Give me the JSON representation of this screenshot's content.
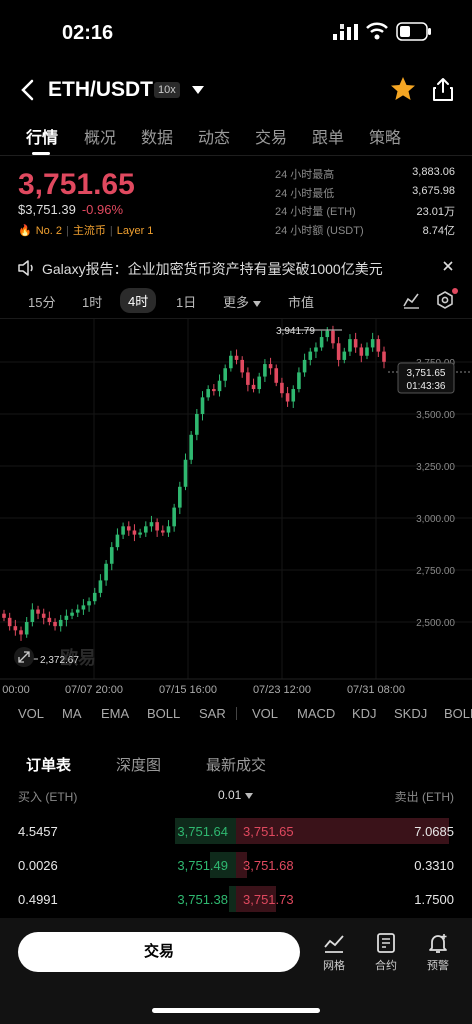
{
  "status_bar": {
    "time": "02:16"
  },
  "header": {
    "pair": "ETH/USDT",
    "leverage": "10x"
  },
  "tabs": [
    "行情",
    "概况",
    "数据",
    "动态",
    "交易",
    "跟单",
    "策略"
  ],
  "price": {
    "last": "3,751.65",
    "usd": "$3,751.39",
    "change": "-0.96%",
    "tags": [
      "No. 2",
      "主流币",
      "Layer 1"
    ]
  },
  "stats": [
    {
      "label": "24 小时最高",
      "value": "3,883.06"
    },
    {
      "label": "24 小时最低",
      "value": "3,675.98"
    },
    {
      "label": "24 小时量 (ETH)",
      "value": "23.01万"
    },
    {
      "label": "24 小时额 (USDT)",
      "value": "8.74亿"
    }
  ],
  "notice": "Galaxy报告：企业加密货币资产持有量突破1000亿美元",
  "intervals": [
    "15分",
    "1时",
    "4时",
    "1日",
    "更多",
    "市值"
  ],
  "active_interval": "4时",
  "chart_data": {
    "type": "candlestick",
    "y_ticks": [
      "3,750.00",
      "3,500.00",
      "3,250.00",
      "3,000.00",
      "2,750.00",
      "2,500.00"
    ],
    "y_tick_values": [
      3750,
      3500,
      3250,
      3000,
      2750,
      2500
    ],
    "x_ticks": [
      "00:00",
      "07/07 20:00",
      "07/15 16:00",
      "07/23 12:00",
      "07/31 08:00"
    ],
    "high_label": "3,941.79",
    "low_label": "2,372.67",
    "last_price": "3,751.65",
    "countdown": "01:43:36",
    "watermark": "欧易",
    "closes": [
      2520,
      2480,
      2460,
      2440,
      2500,
      2560,
      2540,
      2520,
      2500,
      2480,
      2510,
      2530,
      2545,
      2560,
      2580,
      2600,
      2640,
      2700,
      2780,
      2860,
      2920,
      2960,
      2940,
      2920,
      2930,
      2960,
      2980,
      2940,
      2930,
      2960,
      3050,
      3150,
      3280,
      3400,
      3500,
      3580,
      3620,
      3610,
      3660,
      3720,
      3780,
      3760,
      3700,
      3640,
      3620,
      3680,
      3740,
      3720,
      3650,
      3600,
      3560,
      3620,
      3700,
      3760,
      3800,
      3820,
      3870,
      3900,
      3840,
      3760,
      3800,
      3860,
      3820,
      3780,
      3820,
      3860,
      3800,
      3751
    ]
  },
  "indicators_main": [
    "VOL",
    "MA",
    "EMA",
    "BOLL",
    "SAR"
  ],
  "indicators_sub": [
    "VOL",
    "MACD",
    "KDJ",
    "SKDJ",
    "BOLL"
  ],
  "orderbook": {
    "tabs": [
      "订单表",
      "深度图",
      "最新成交"
    ],
    "buy_label": "买入 (ETH)",
    "sell_label": "卖出 (ETH)",
    "precision": "0.01",
    "rows": [
      {
        "bid_qty": "4.5457",
        "bid": "3,751.64",
        "ask": "3,751.65",
        "ask_qty": "7.0685",
        "bid_depth": 0.28,
        "ask_depth": 0.95
      },
      {
        "bid_qty": "0.0026",
        "bid": "3,751.49",
        "ask": "3,751.68",
        "ask_qty": "0.3310",
        "bid_depth": 0.12,
        "ask_depth": 0.05
      },
      {
        "bid_qty": "0.4991",
        "bid": "3,751.38",
        "ask": "3,751.73",
        "ask_qty": "1.7500",
        "bid_depth": 0.03,
        "ask_depth": 0.18
      }
    ]
  },
  "bottom": {
    "trade": "交易",
    "grid": "网格",
    "contract": "合约",
    "alert": "预警"
  }
}
